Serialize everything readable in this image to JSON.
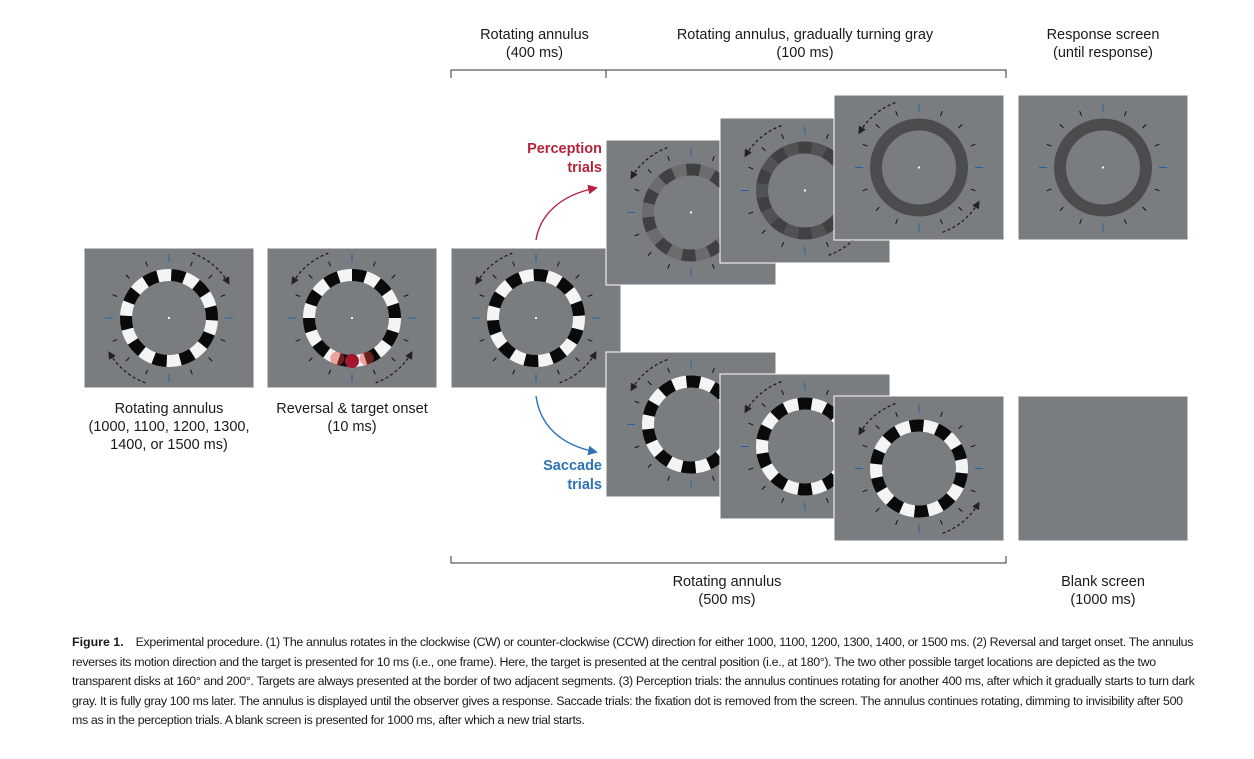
{
  "labels": {
    "rotating_400": "Rotating annulus\n(400 ms)",
    "rotating_gray": "Rotating annulus, gradually turning gray\n(100 ms)",
    "response": "Response screen\n(until response)",
    "rotating_initial": "Rotating annulus\n(1000, 1100, 1200, 1300,\n1400, or 1500 ms)",
    "reversal": "Reversal & target onset\n(10 ms)",
    "rotating_500": "Rotating annulus\n(500 ms)",
    "blank": "Blank screen\n(1000 ms)"
  },
  "trials": {
    "perception": "Perception\ntrials",
    "saccade": "Saccade\ntrials"
  },
  "colors": {
    "screen_gray": "#7a7d80",
    "perception_red": "#b5233b",
    "saccade_blue": "#2f72b5",
    "tick_blue": "#2a5fa8",
    "dark_ring": "#4a4c4e"
  },
  "caption": {
    "label": "Figure 1.",
    "text": "Experimental procedure. (1) The annulus rotates in the clockwise (CW) or counter-clockwise (CCW) direction for either 1000, 1100, 1200, 1300, 1400, or 1500 ms. (2) Reversal and target onset. The annulus reverses its motion direction and the target is presented for 10 ms (i.e., one frame). Here, the target is presented at the central position (i.e., at 180°). The two other possible target locations are depicted as the two transparent disks at 160° and 200°. Targets are always presented at the border of two adjacent segments. (3) Perception trials: the annulus continues rotating for another 400 ms, after which it gradually starts to turn dark gray. It is fully gray 100 ms later. The annulus is displayed until the observer gives a response. Saccade trials: the fixation dot is removed from the screen. The annulus continues rotating, dimming to invisibility after 500 ms as in the perception trials. A blank screen is presented for 1000 ms, after which a new trial starts."
  }
}
